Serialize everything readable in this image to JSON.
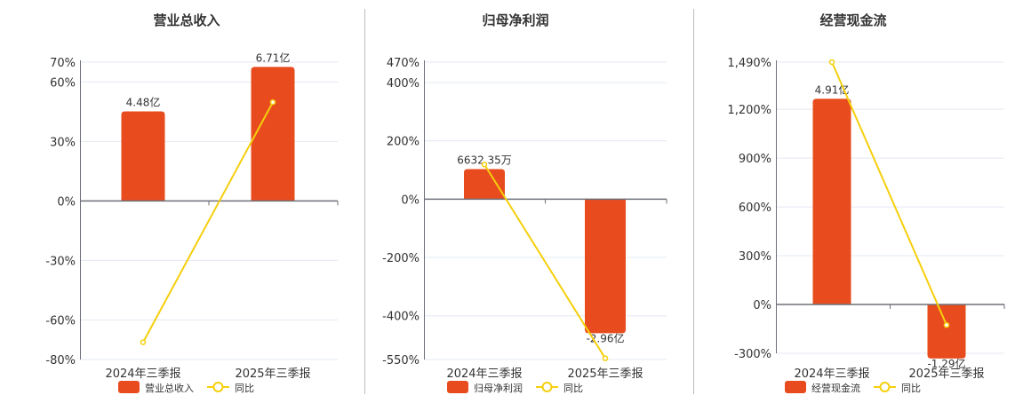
{
  "colors": {
    "bar": "#e84c1e",
    "line": "#f5cf0c",
    "grid": "#e3e8f2",
    "axis": "#6e7079",
    "text": "#333333",
    "divider": "#bbbbbb"
  },
  "chart_data": [
    {
      "type": "bar+line",
      "title": "营业总收入",
      "categories": [
        "2024年三季报",
        "2025年三季报"
      ],
      "bar_series": {
        "name": "营业总收入",
        "values": [
          4.48,
          6.71
        ],
        "labels": [
          "4.48亿",
          "6.71亿"
        ],
        "unit": "亿"
      },
      "line_series": {
        "name": "同比",
        "values": [
          -71.3,
          49.8
        ],
        "unit": "%"
      },
      "y_ticks": [
        70,
        60,
        30,
        0,
        -30,
        -60,
        -80
      ],
      "y_tick_labels": [
        "70%",
        "60%",
        "30%",
        "0%",
        "-30%",
        "-60%",
        "-80%"
      ],
      "ylim": [
        -80,
        70
      ],
      "grid": true,
      "legend": "bottom"
    },
    {
      "type": "bar+line",
      "title": "归母净利润",
      "categories": [
        "2024年三季报",
        "2025年三季报"
      ],
      "bar_series": {
        "name": "归母净利润",
        "values": [
          0.6632,
          -2.96
        ],
        "labels": [
          "6632.35万",
          "-2.96亿"
        ],
        "unit": "亿"
      },
      "line_series": {
        "name": "同比",
        "values": [
          119,
          -546
        ],
        "unit": "%"
      },
      "y_ticks": [
        470,
        400,
        200,
        0,
        -200,
        -400,
        -550
      ],
      "y_tick_labels": [
        "470%",
        "400%",
        "200%",
        "0%",
        "-200%",
        "-400%",
        "-550%"
      ],
      "ylim": [
        -550,
        470
      ],
      "grid": true,
      "legend": "bottom"
    },
    {
      "type": "bar+line",
      "title": "经营现金流",
      "categories": [
        "2024年三季报",
        "2025年三季报"
      ],
      "bar_series": {
        "name": "经营现金流",
        "values": [
          4.91,
          -1.29
        ],
        "labels": [
          "4.91亿",
          "-1.29亿"
        ],
        "unit": "亿"
      },
      "line_series": {
        "name": "同比",
        "values": [
          1490,
          -126.3
        ],
        "unit": "%"
      },
      "y_ticks": [
        1490,
        1200,
        900,
        600,
        300,
        0,
        -300
      ],
      "y_tick_labels": [
        "1,490%",
        "1,200%",
        "900%",
        "600%",
        "300%",
        "0%",
        "-300%"
      ],
      "ylim": [
        -300,
        1490
      ],
      "grid": true,
      "legend": "bottom"
    }
  ]
}
